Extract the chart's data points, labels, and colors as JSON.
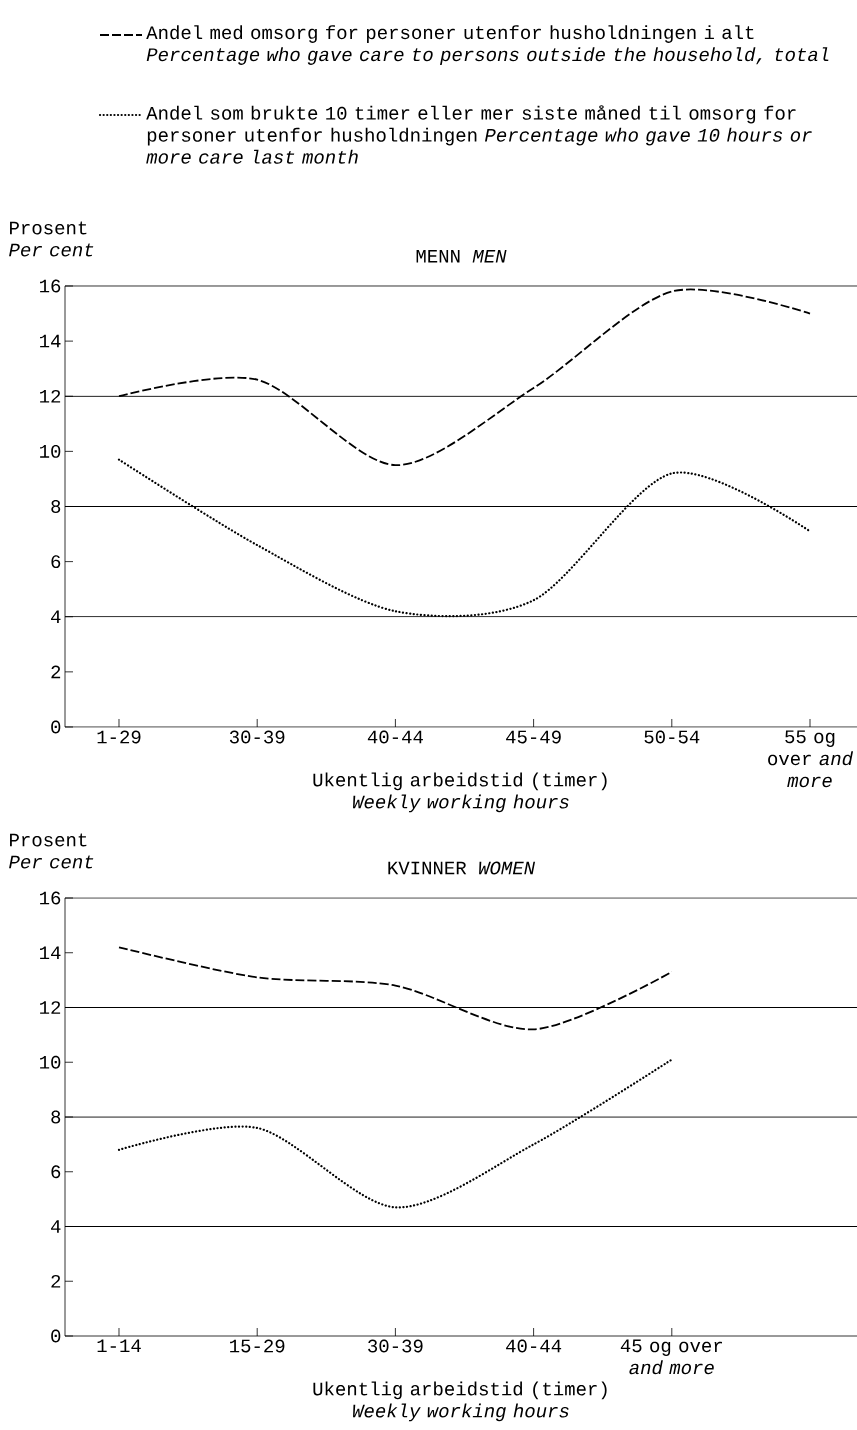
{
  "chart_data": [
    {
      "type": "line",
      "title": "MENN *MEN*",
      "ylabel": "Prosent *Per cent*",
      "xlabel": "Ukentlig arbeidstid (timer) *Weekly working hours*",
      "categories": [
        "1-29",
        "30-39",
        "40-44",
        "45-49",
        "50-54",
        "55 og over *and more*"
      ],
      "series": [
        {
          "name": "Andel med omsorg for personer utenfor husholdningen i alt *Percentage who gave care to persons outside the household, total*",
          "color": "#000000",
          "line_style": "dashed",
          "values": [
            12.0,
            12.6,
            9.5,
            12.3,
            15.8,
            15.0
          ]
        },
        {
          "name": "Andel som brukte 10 timer eller mer siste måned til omsorg for personer utenfor husholdningen *Percentage who gave 10 hours or more care last month*",
          "color": "#000000",
          "line_style": "dotted",
          "values": [
            9.7,
            6.6,
            4.2,
            4.6,
            9.2,
            7.1
          ]
        }
      ],
      "ylim": [
        0,
        16
      ],
      "yticks": [
        0,
        2,
        4,
        6,
        8,
        10,
        12,
        14,
        16
      ],
      "ref_lines": [
        {
          "axis": "y",
          "value": 4
        },
        {
          "axis": "y",
          "value": 8
        },
        {
          "axis": "y",
          "value": 12
        }
      ],
      "legend": "top",
      "marker": "none"
    },
    {
      "type": "line",
      "title": "KVINNER *WOMEN*",
      "ylabel": "Prosent *Per cent*",
      "xlabel": "Ukentlig arbeidstid (timer) *Weekly working hours*",
      "categories": [
        "1-14",
        "15-29",
        "30-39",
        "40-44",
        "45 og over *and more*"
      ],
      "series": [
        {
          "color": "#000000",
          "line_style": "dashed",
          "values": [
            14.2,
            13.1,
            12.8,
            11.2,
            13.3
          ]
        },
        {
          "color": "#000000",
          "line_style": "dotted",
          "values": [
            6.8,
            7.6,
            4.7,
            7.0,
            10.1
          ]
        }
      ],
      "ylim": [
        0,
        16
      ],
      "yticks": [
        0,
        2,
        4,
        6,
        8,
        10,
        12,
        14,
        16
      ],
      "ref_lines": [
        {
          "axis": "y",
          "value": 4
        },
        {
          "axis": "y",
          "value": 8
        },
        {
          "axis": "y",
          "value": 12
        }
      ],
      "marker": "none"
    }
  ]
}
